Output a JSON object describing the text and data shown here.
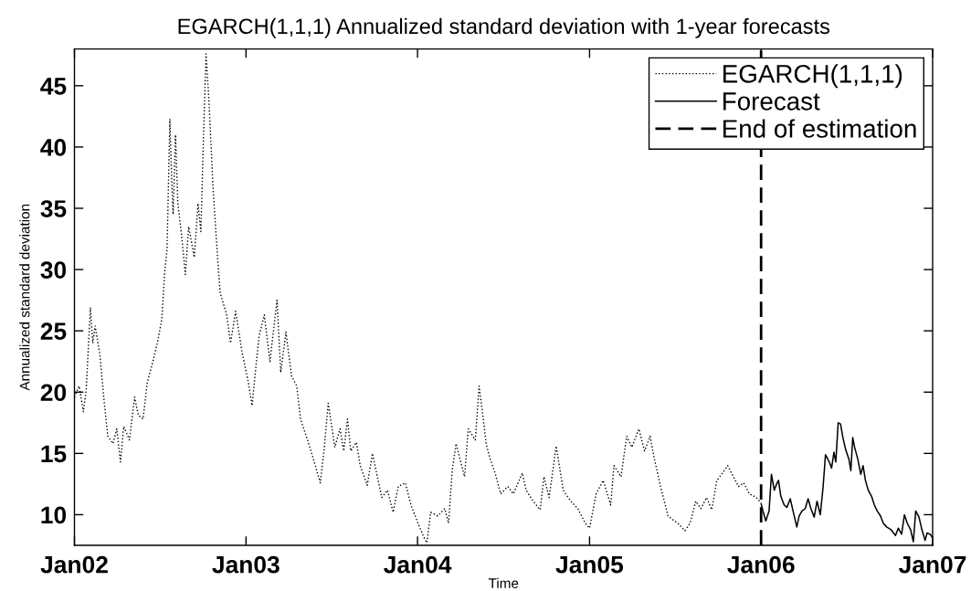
{
  "chart_data": {
    "type": "line",
    "title": "EGARCH(1,1,1) Annualized standard deviation with 1-year forecasts",
    "xlabel": "Time",
    "ylabel": "Annualized standard deviation",
    "xlim": [
      "2002-01-01",
      "2007-01-01"
    ],
    "xticks": [
      {
        "value": "2002-01-01",
        "label": "Jan02"
      },
      {
        "value": "2003-01-01",
        "label": "Jan03"
      },
      {
        "value": "2004-01-01",
        "label": "Jan04"
      },
      {
        "value": "2005-01-01",
        "label": "Jan05"
      },
      {
        "value": "2006-01-01",
        "label": "Jan06"
      },
      {
        "value": "2007-01-01",
        "label": "Jan07"
      }
    ],
    "ylim": [
      7.5,
      48
    ],
    "yticks": [
      10,
      15,
      20,
      25,
      30,
      35,
      40,
      45
    ],
    "grid": false,
    "legend": "top right",
    "series": [
      {
        "name": "EGARCH(1,1,1)",
        "color": "#000000",
        "line_style": "dotted",
        "x": [
          "2002-01-01",
          "2002-01-11",
          "2002-01-20",
          "2002-01-26",
          "2002-02-04",
          "2002-02-09",
          "2002-02-14",
          "2002-02-24",
          "2002-03-05",
          "2002-03-13",
          "2002-03-24",
          "2002-04-01",
          "2002-04-09",
          "2002-04-16",
          "2002-04-28",
          "2002-05-09",
          "2002-05-17",
          "2002-05-27",
          "2002-06-05",
          "2002-06-17",
          "2002-06-28",
          "2002-07-06",
          "2002-07-12",
          "2002-07-17",
          "2002-07-23",
          "2002-07-27",
          "2002-07-30",
          "2002-08-04",
          "2002-08-09",
          "2002-08-17",
          "2002-08-25",
          "2002-09-01",
          "2002-09-13",
          "2002-09-21",
          "2002-09-27",
          "2002-10-02",
          "2002-10-08",
          "2002-10-14",
          "2002-10-23",
          "2002-11-02",
          "2002-11-07",
          "2002-11-21",
          "2002-11-29",
          "2002-12-10",
          "2002-12-23",
          "2003-01-06",
          "2003-01-14",
          "2003-01-20",
          "2003-01-29",
          "2003-02-09",
          "2003-02-21",
          "2003-03-08",
          "2003-03-16",
          "2003-03-27",
          "2003-04-08",
          "2003-04-19",
          "2003-04-27",
          "2003-05-12",
          "2003-05-24",
          "2003-06-08",
          "2003-06-16",
          "2003-06-25",
          "2003-07-09",
          "2003-07-20",
          "2003-07-28",
          "2003-08-05",
          "2003-08-12",
          "2003-08-24",
          "2003-09-01",
          "2003-09-16",
          "2003-09-27",
          "2003-10-17",
          "2003-10-29",
          "2003-11-10",
          "2003-11-21",
          "2003-12-06",
          "2003-12-18",
          "2004-01-02",
          "2004-01-14",
          "2004-01-21",
          "2004-01-29",
          "2004-02-13",
          "2004-02-28",
          "2004-03-07",
          "2004-03-15",
          "2004-03-23",
          "2004-04-10",
          "2004-04-18",
          "2004-05-03",
          "2004-05-11",
          "2004-05-19",
          "2004-05-26",
          "2004-06-03",
          "2004-06-14",
          "2004-06-26",
          "2004-07-11",
          "2004-07-23",
          "2004-08-11",
          "2004-08-19",
          "2004-09-03",
          "2004-09-18",
          "2004-09-26",
          "2004-10-07",
          "2004-10-22",
          "2004-11-06",
          "2004-11-22",
          "2004-12-07",
          "2004-12-23",
          "2005-01-01",
          "2005-01-15",
          "2005-01-30",
          "2005-02-15",
          "2005-02-22",
          "2005-03-09",
          "2005-03-21",
          "2005-04-01",
          "2005-04-16",
          "2005-04-28",
          "2005-05-10",
          "2005-05-17",
          "2005-06-01",
          "2005-06-17",
          "2005-06-27",
          "2005-07-08",
          "2005-07-23",
          "2005-08-03",
          "2005-08-15",
          "2005-08-26",
          "2005-09-07",
          "2005-09-18",
          "2005-09-29",
          "2005-10-11",
          "2005-10-22",
          "2005-11-03",
          "2005-11-14",
          "2005-11-25",
          "2005-12-07",
          "2005-12-22",
          "2005-12-29"
        ],
        "values": [
          19.6,
          20.5,
          18.4,
          20.2,
          26.9,
          24.0,
          25.4,
          23.1,
          19.3,
          16.4,
          15.8,
          17.0,
          14.3,
          17.2,
          16.1,
          19.6,
          18.1,
          17.8,
          20.8,
          22.5,
          24.3,
          26.0,
          29.8,
          31.6,
          42.3,
          37.2,
          34.5,
          41.0,
          35.4,
          32.8,
          29.6,
          33.5,
          31.0,
          35.4,
          33.1,
          40.1,
          47.6,
          43.9,
          36.6,
          30.7,
          28.1,
          26.3,
          24.0,
          26.6,
          23.4,
          20.8,
          18.9,
          21.3,
          24.6,
          26.3,
          22.5,
          27.5,
          21.6,
          24.9,
          21.3,
          20.5,
          17.8,
          16.1,
          14.6,
          12.6,
          15.2,
          19.1,
          15.5,
          17.0,
          15.2,
          17.8,
          15.2,
          15.9,
          14.0,
          12.4,
          15.0,
          11.4,
          12.0,
          10.2,
          12.3,
          12.6,
          10.8,
          9.3,
          8.2,
          7.7,
          10.2,
          9.9,
          10.5,
          9.3,
          13.7,
          15.8,
          13.1,
          17.0,
          16.1,
          20.5,
          18.1,
          15.8,
          14.6,
          13.4,
          11.7,
          12.3,
          11.7,
          13.4,
          12.0,
          11.1,
          10.4,
          13.1,
          11.4,
          15.6,
          12.0,
          11.1,
          10.5,
          9.3,
          8.9,
          11.7,
          12.8,
          10.8,
          14.0,
          13.1,
          16.4,
          15.5,
          17.0,
          15.2,
          16.4,
          14.9,
          12.3,
          9.9,
          9.6,
          9.3,
          8.7,
          9.3,
          11.1,
          10.5,
          11.4,
          10.4,
          12.8,
          13.4,
          14.0,
          13.1,
          12.3,
          12.6,
          11.7,
          11.4,
          11.1
        ]
      },
      {
        "name": "Forecast",
        "color": "#000000",
        "line_style": "solid",
        "x": [
          "2006-01-01",
          "2006-01-05",
          "2006-01-11",
          "2006-01-18",
          "2006-01-23",
          "2006-01-29",
          "2006-02-03",
          "2006-02-07",
          "2006-02-12",
          "2006-02-19",
          "2006-02-25",
          "2006-03-04",
          "2006-03-10",
          "2006-03-18",
          "2006-03-23",
          "2006-03-29",
          "2006-04-05",
          "2006-04-11",
          "2006-04-17",
          "2006-04-24",
          "2006-04-30",
          "2006-05-07",
          "2006-05-13",
          "2006-05-18",
          "2006-05-26",
          "2006-05-31",
          "2006-06-05",
          "2006-06-09",
          "2006-06-14",
          "2006-06-19",
          "2006-06-24",
          "2006-06-30",
          "2006-07-07",
          "2006-07-11",
          "2006-07-15",
          "2006-07-19",
          "2006-07-26",
          "2006-08-01",
          "2006-08-06",
          "2006-08-11",
          "2006-08-17",
          "2006-08-24",
          "2006-08-30",
          "2006-09-05",
          "2006-09-12",
          "2006-09-18",
          "2006-09-25",
          "2006-10-04",
          "2006-10-14",
          "2006-10-20",
          "2006-10-27",
          "2006-11-02",
          "2006-11-08",
          "2006-11-15",
          "2006-11-21",
          "2006-11-26",
          "2006-12-03",
          "2006-12-09",
          "2006-12-16",
          "2006-12-20",
          "2006-12-27",
          "2007-01-01"
        ],
        "values": [
          10.9,
          10.3,
          9.5,
          10.3,
          13.3,
          12.0,
          12.5,
          12.8,
          11.5,
          10.8,
          10.6,
          11.3,
          10.3,
          9.0,
          9.9,
          10.3,
          10.5,
          11.3,
          10.5,
          9.8,
          11.1,
          10.0,
          12.3,
          14.9,
          14.3,
          13.8,
          15.1,
          14.3,
          17.5,
          17.4,
          16.3,
          15.3,
          14.5,
          13.6,
          16.3,
          15.5,
          14.5,
          13.3,
          14.0,
          12.8,
          12.0,
          11.5,
          10.8,
          10.3,
          9.9,
          9.3,
          9.0,
          8.8,
          8.3,
          8.9,
          8.4,
          10.0,
          9.3,
          8.8,
          7.8,
          10.3,
          9.8,
          8.8,
          7.9,
          8.5,
          8.4,
          8.1
        ]
      }
    ],
    "ref_lines": [
      {
        "axis": "x",
        "value": "2006-01-01",
        "label": "End of estimation",
        "color": "#000000",
        "line_style": "dashed"
      }
    ]
  }
}
